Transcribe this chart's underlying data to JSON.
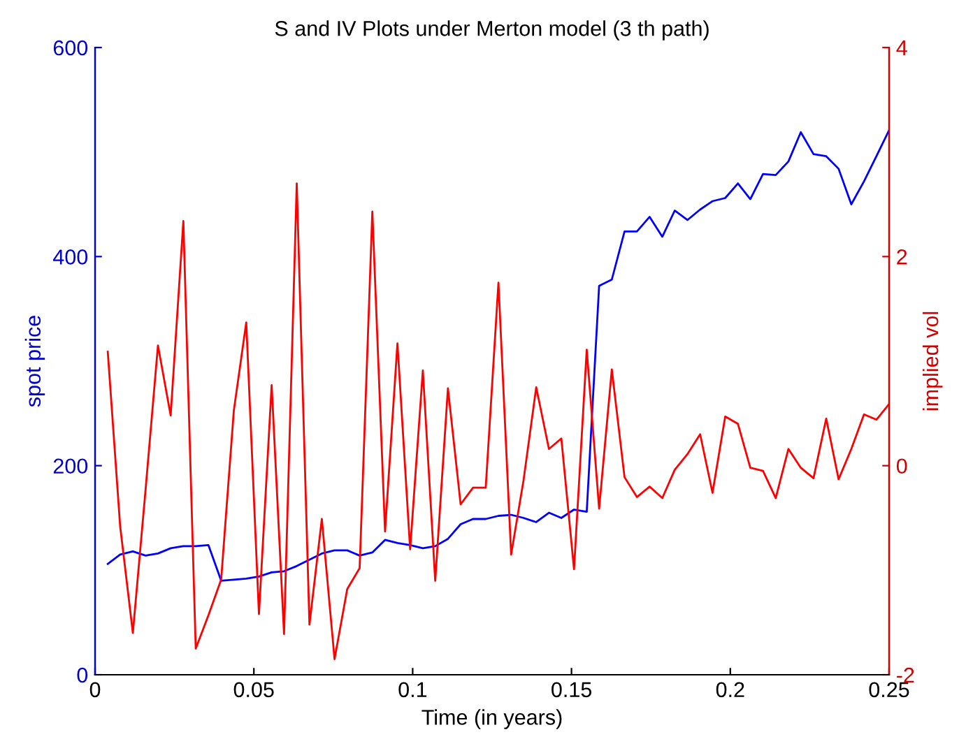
{
  "chart_data": {
    "type": "line",
    "title": "S and IV Plots under Merton model (3 th path)",
    "xlabel": "Time (in years)",
    "ylabel": "spot price",
    "y2label": "implied vol",
    "x": [
      0.004,
      0.0079,
      0.0119,
      0.0159,
      0.0198,
      0.0238,
      0.0278,
      0.0317,
      0.0357,
      0.0397,
      0.0437,
      0.0476,
      0.0516,
      0.0556,
      0.0595,
      0.0635,
      0.0675,
      0.0714,
      0.0754,
      0.0794,
      0.0833,
      0.0873,
      0.0913,
      0.0952,
      0.0992,
      0.1032,
      0.1071,
      0.1111,
      0.1151,
      0.119,
      0.123,
      0.127,
      0.131,
      0.1349,
      0.1389,
      0.1429,
      0.1468,
      0.1508,
      0.1548,
      0.1587,
      0.1627,
      0.1667,
      0.1706,
      0.1746,
      0.1786,
      0.1825,
      0.1865,
      0.1905,
      0.1944,
      0.1984,
      0.2024,
      0.2063,
      0.2103,
      0.2143,
      0.2183,
      0.2222,
      0.2262,
      0.2302,
      0.2341,
      0.2381,
      0.2421,
      0.246,
      0.25
    ],
    "series": [
      {
        "color": "#0000ff",
        "values": [
          106,
          115,
          118,
          114,
          116,
          121,
          123,
          123,
          124,
          90,
          91,
          92,
          94,
          98,
          99,
          104,
          110,
          116,
          119,
          119,
          114,
          117,
          129,
          126,
          124,
          121,
          123,
          130,
          144,
          149,
          149,
          152,
          153,
          150,
          146,
          155,
          150,
          158,
          156,
          372,
          378,
          424,
          424,
          438,
          419,
          444,
          435,
          445,
          453,
          456,
          470,
          455,
          479,
          478,
          491,
          519,
          498,
          496,
          484,
          450,
          472,
          496,
          521
        ]
      },
      {
        "color": "#ff0000",
        "axis": "y2",
        "values": [
          1.09,
          -0.58,
          -1.6,
          -0.23,
          1.15,
          0.48,
          2.34,
          -1.75,
          -1.43,
          -1.09,
          0.53,
          1.37,
          -1.42,
          0.77,
          -1.61,
          2.7,
          -1.52,
          -0.51,
          -1.85,
          -1.18,
          -0.98,
          2.43,
          -0.63,
          1.17,
          -0.8,
          0.91,
          -1.1,
          0.74,
          -0.37,
          -0.21,
          -0.21,
          1.75,
          -0.85,
          -0.14,
          0.75,
          0.16,
          0.26,
          -0.99,
          1.11,
          -0.41,
          0.92,
          -0.11,
          -0.3,
          -0.2,
          -0.31,
          -0.04,
          0.11,
          0.3,
          -0.26,
          0.47,
          0.4,
          -0.02,
          -0.05,
          -0.31,
          0.16,
          -0.02,
          -0.12,
          0.45,
          -0.13,
          0.16,
          0.49,
          0.44,
          0.59
        ]
      }
    ],
    "xlim": [
      0,
      0.25
    ],
    "xticks": [
      0,
      0.05,
      0.1,
      0.15,
      0.2,
      0.25
    ],
    "ylim": [
      0,
      600
    ],
    "yticks": [
      0,
      200,
      400,
      600
    ],
    "y2lim": [
      -2,
      4
    ],
    "y2ticks": [
      -2,
      0,
      2,
      4
    ],
    "grid": false,
    "legend": false,
    "marker": "none",
    "line_style": "solid"
  }
}
